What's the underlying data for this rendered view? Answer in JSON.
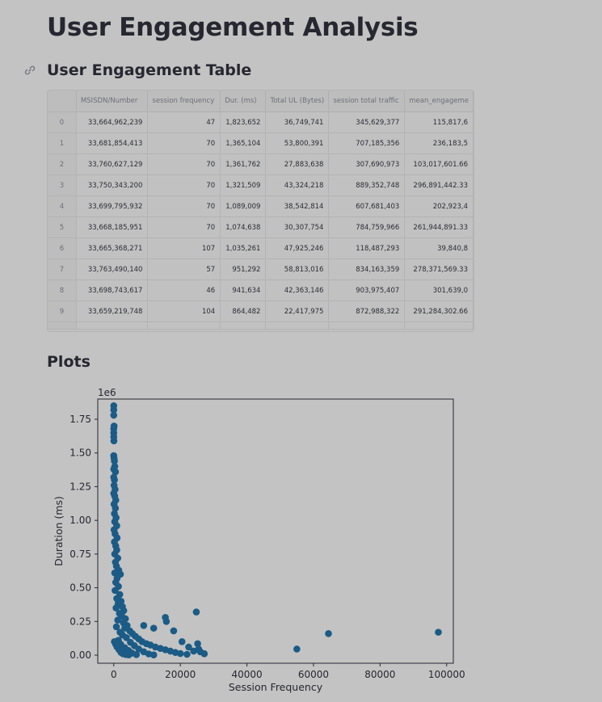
{
  "page": {
    "title": "User Engagement Analysis"
  },
  "table_section": {
    "title": "User Engagement Table",
    "columns": [
      "",
      "MSISDN/Number",
      "session frequency",
      "Dur. (ms)",
      "Total UL (Bytes)",
      "session total traffic",
      "mean_engageme"
    ],
    "rows": [
      [
        "0",
        "33,664,962,239",
        "47",
        "1,823,652",
        "36,749,741",
        "345,629,377",
        "115,817,6"
      ],
      [
        "1",
        "33,681,854,413",
        "70",
        "1,365,104",
        "53,800,391",
        "707,185,356",
        "236,183,5"
      ],
      [
        "2",
        "33,760,627,129",
        "70",
        "1,361,762",
        "27,883,638",
        "307,690,973",
        "103,017,601.66"
      ],
      [
        "3",
        "33,750,343,200",
        "70",
        "1,321,509",
        "43,324,218",
        "889,352,748",
        "296,891,442.33"
      ],
      [
        "4",
        "33,699,795,932",
        "70",
        "1,089,009",
        "38,542,814",
        "607,681,403",
        "202,923,4"
      ],
      [
        "5",
        "33,668,185,951",
        "70",
        "1,074,638",
        "30,307,754",
        "784,759,966",
        "261,944,891.33"
      ],
      [
        "6",
        "33,665,368,271",
        "107",
        "1,035,261",
        "47,925,246",
        "118,487,293",
        "39,840,8"
      ],
      [
        "7",
        "33,763,490,140",
        "57",
        "951,292",
        "58,813,016",
        "834,163,359",
        "278,371,569.33"
      ],
      [
        "8",
        "33,698,743,617",
        "46",
        "941,634",
        "42,363,146",
        "903,975,407",
        "301,639,0"
      ],
      [
        "9",
        "33,659,219,748",
        "104",
        "864,482",
        "22,417,975",
        "872,988,322",
        "291,284,302.66"
      ]
    ]
  },
  "plots_section": {
    "title": "Plots"
  },
  "colors": {
    "marker": "#1b5b86",
    "background": "#c3c3c3"
  },
  "icons": {
    "section_anchor": "link-icon"
  },
  "chart_data": {
    "type": "scatter",
    "title": "",
    "xlabel": "Session Frequency",
    "ylabel": "Duration (ms)",
    "xlim": [
      -4800,
      102000
    ],
    "ylim": [
      -60000,
      1900000
    ],
    "y_offset_label": "1e6",
    "x_ticks": [
      0,
      20000,
      40000,
      60000,
      80000,
      100000
    ],
    "x_tick_labels": [
      "0",
      "20000",
      "40000",
      "60000",
      "80000",
      "100000"
    ],
    "y_ticks": [
      0,
      250000,
      500000,
      750000,
      1000000,
      1250000,
      1500000,
      1750000
    ],
    "y_tick_labels": [
      "0.00",
      "0.25",
      "0.50",
      "0.75",
      "1.00",
      "1.25",
      "1.50",
      "1.75"
    ],
    "grid": false,
    "points": [
      [
        0,
        1850000
      ],
      [
        0,
        1820000
      ],
      [
        0,
        1780000
      ],
      [
        100,
        1700000
      ],
      [
        0,
        1680000
      ],
      [
        0,
        1650000
      ],
      [
        0,
        1620000
      ],
      [
        50,
        1590000
      ],
      [
        0,
        1480000
      ],
      [
        100,
        1460000
      ],
      [
        200,
        1440000
      ],
      [
        300,
        1400000
      ],
      [
        0,
        1380000
      ],
      [
        500,
        1360000
      ],
      [
        0,
        1320000
      ],
      [
        200,
        1300000
      ],
      [
        100,
        1260000
      ],
      [
        400,
        1230000
      ],
      [
        0,
        1200000
      ],
      [
        300,
        1180000
      ],
      [
        600,
        1150000
      ],
      [
        100,
        1120000
      ],
      [
        500,
        1090000
      ],
      [
        200,
        1050000
      ],
      [
        700,
        1020000
      ],
      [
        300,
        990000
      ],
      [
        900,
        960000
      ],
      [
        100,
        930000
      ],
      [
        400,
        900000
      ],
      [
        1000,
        870000
      ],
      [
        200,
        840000
      ],
      [
        600,
        810000
      ],
      [
        900,
        780000
      ],
      [
        300,
        750000
      ],
      [
        1200,
        720000
      ],
      [
        500,
        690000
      ],
      [
        800,
        660000
      ],
      [
        1500,
        630000
      ],
      [
        2000,
        600000
      ],
      [
        300,
        610000
      ],
      [
        1000,
        570000
      ],
      [
        600,
        540000
      ],
      [
        1400,
        510000
      ],
      [
        400,
        480000
      ],
      [
        1800,
        450000
      ],
      [
        900,
        420000
      ],
      [
        2200,
        400000
      ],
      [
        1300,
        380000
      ],
      [
        2600,
        360000
      ],
      [
        700,
        350000
      ],
      [
        3000,
        330000
      ],
      [
        1700,
        310000
      ],
      [
        2400,
        290000
      ],
      [
        3500,
        270000
      ],
      [
        1200,
        260000
      ],
      [
        2900,
        240000
      ],
      [
        4000,
        220000
      ],
      [
        800,
        210000
      ],
      [
        3300,
        200000
      ],
      [
        4800,
        180000
      ],
      [
        1900,
        170000
      ],
      [
        5600,
        160000
      ],
      [
        2600,
        150000
      ],
      [
        6500,
        140000
      ],
      [
        3800,
        130000
      ],
      [
        7500,
        120000
      ],
      [
        1400,
        110000
      ],
      [
        8500,
        100000
      ],
      [
        5000,
        95000
      ],
      [
        9800,
        85000
      ],
      [
        2100,
        80000
      ],
      [
        11000,
        75000
      ],
      [
        6200,
        70000
      ],
      [
        12500,
        60000
      ],
      [
        3300,
        55000
      ],
      [
        14000,
        50000
      ],
      [
        7500,
        45000
      ],
      [
        15500,
        40000
      ],
      [
        4400,
        35000
      ],
      [
        17000,
        30000
      ],
      [
        9000,
        25000
      ],
      [
        18500,
        20000
      ],
      [
        5500,
        15000
      ],
      [
        20000,
        12000
      ],
      [
        10500,
        9000
      ],
      [
        22000,
        6000
      ],
      [
        6800,
        4000
      ],
      [
        12000,
        2000
      ],
      [
        200,
        100000
      ],
      [
        600,
        80000
      ],
      [
        1000,
        60000
      ],
      [
        1600,
        40000
      ],
      [
        2200,
        20000
      ],
      [
        2800,
        10000
      ],
      [
        3600,
        5000
      ],
      [
        4500,
        2000
      ],
      [
        15500,
        280000
      ],
      [
        15800,
        250000
      ],
      [
        24800,
        320000
      ],
      [
        18000,
        180000
      ],
      [
        12000,
        200000
      ],
      [
        9000,
        220000
      ],
      [
        20500,
        100000
      ],
      [
        22500,
        60000
      ],
      [
        25200,
        85000
      ],
      [
        25500,
        45000
      ],
      [
        26000,
        25000
      ],
      [
        27200,
        10000
      ],
      [
        24000,
        30000
      ],
      [
        55000,
        45000
      ],
      [
        64500,
        160000
      ],
      [
        97500,
        170000
      ]
    ]
  }
}
